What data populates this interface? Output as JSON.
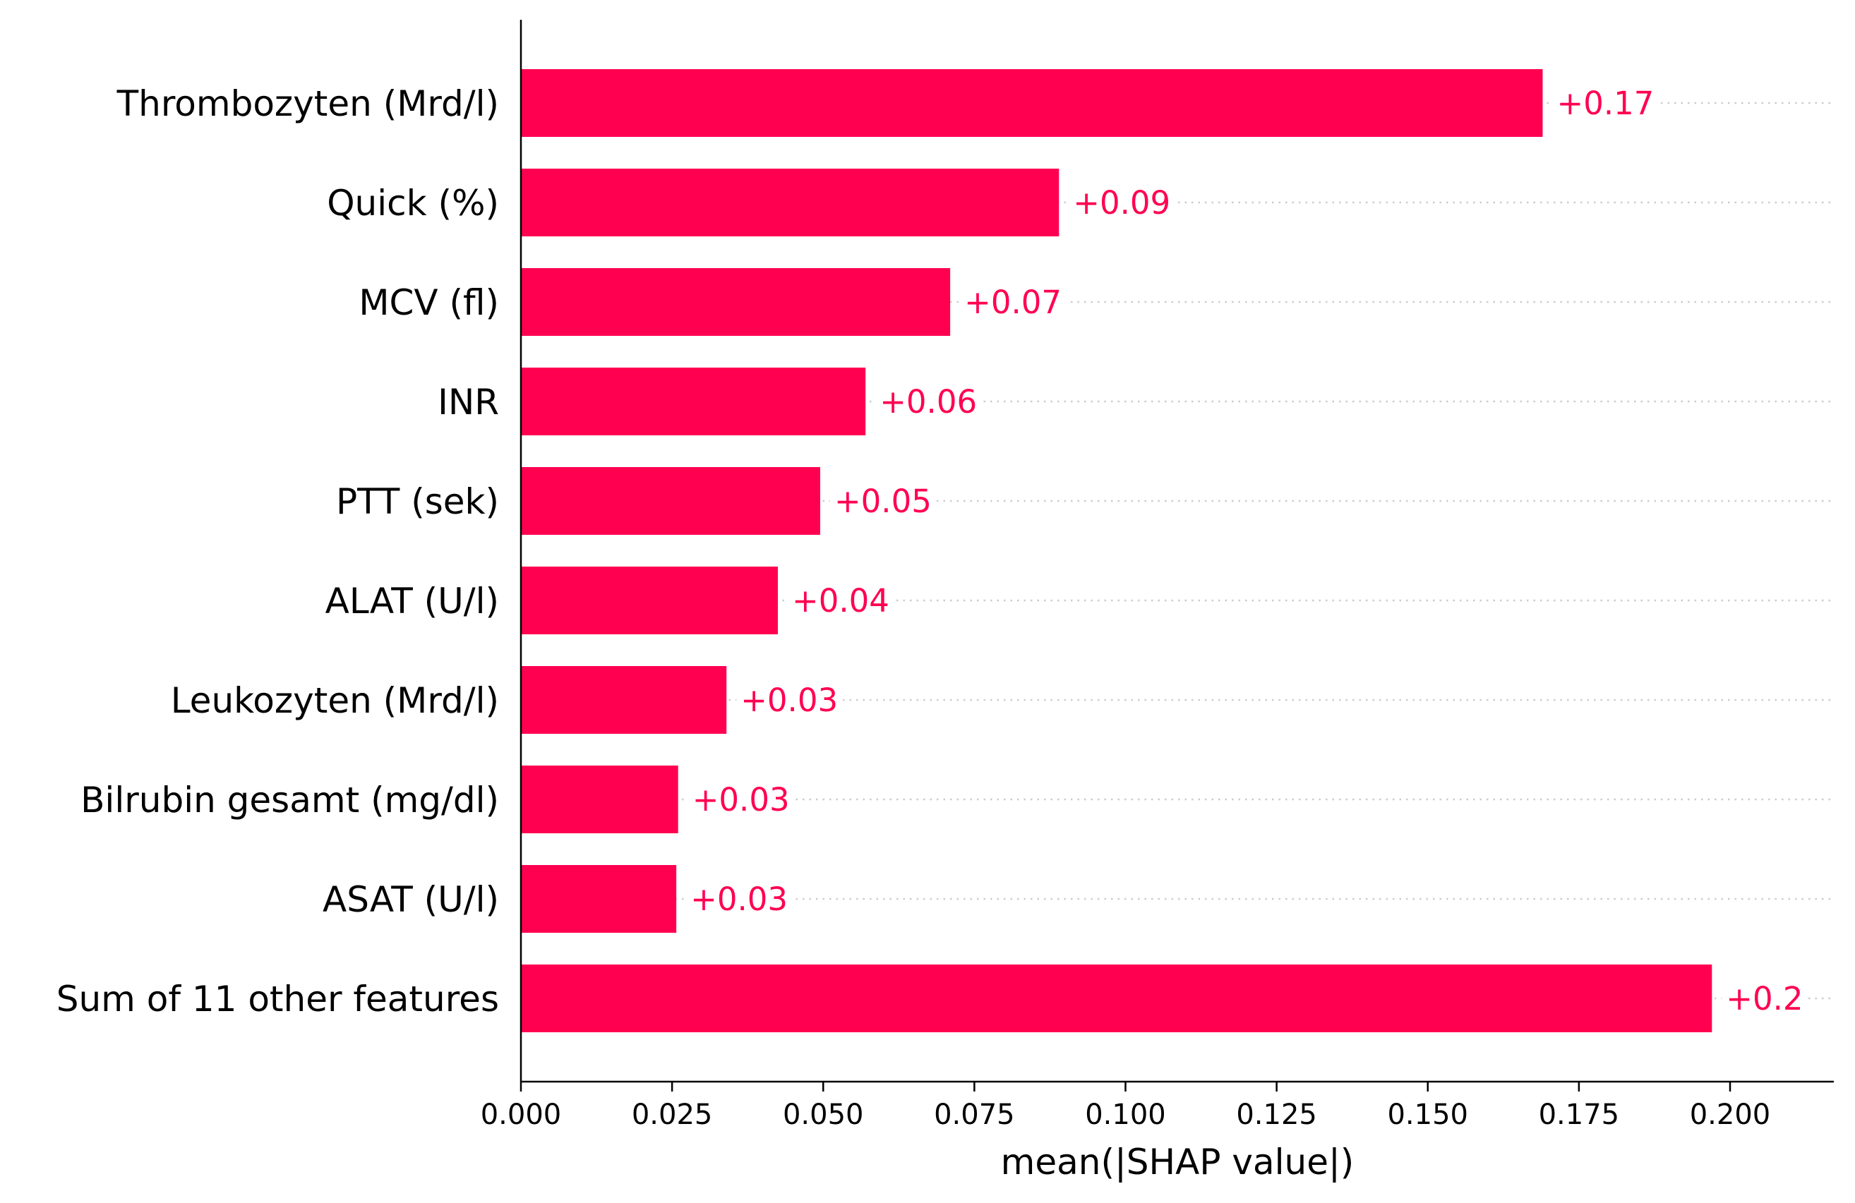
{
  "chart_data": {
    "type": "bar",
    "orientation": "horizontal",
    "categories": [
      "Thrombozyten (Mrd/l)",
      "Quick (%)",
      "MCV (fl)",
      "INR",
      "PTT (sek)",
      "ALAT (U/l)",
      "Leukozyten (Mrd/l)",
      "Bilrubin gesamt (mg/dl)",
      "ASAT (U/l)",
      "Sum of 11 other features"
    ],
    "values": [
      0.169,
      0.089,
      0.071,
      0.057,
      0.0495,
      0.0425,
      0.034,
      0.026,
      0.0257,
      0.197
    ],
    "value_labels": [
      "+0.17",
      "+0.09",
      "+0.07",
      "+0.06",
      "+0.05",
      "+0.04",
      "+0.03",
      "+0.03",
      "+0.03",
      "+0.2"
    ],
    "xlabel": "mean(|SHAP value|)",
    "ylabel": "",
    "title": "",
    "xlim": [
      0,
      0.2175
    ],
    "xticks": [
      0.0,
      0.025,
      0.05,
      0.075,
      0.1,
      0.125,
      0.15,
      0.175,
      0.2
    ],
    "xtick_labels": [
      "0.000",
      "0.025",
      "0.050",
      "0.075",
      "0.100",
      "0.125",
      "0.150",
      "0.175",
      "0.200"
    ],
    "grid": false,
    "guide_lines": "dotted",
    "bar_color": "#ff0051",
    "label_color": "#ff0051",
    "axis_color": "#000000",
    "guide_color": "#cccccc"
  }
}
